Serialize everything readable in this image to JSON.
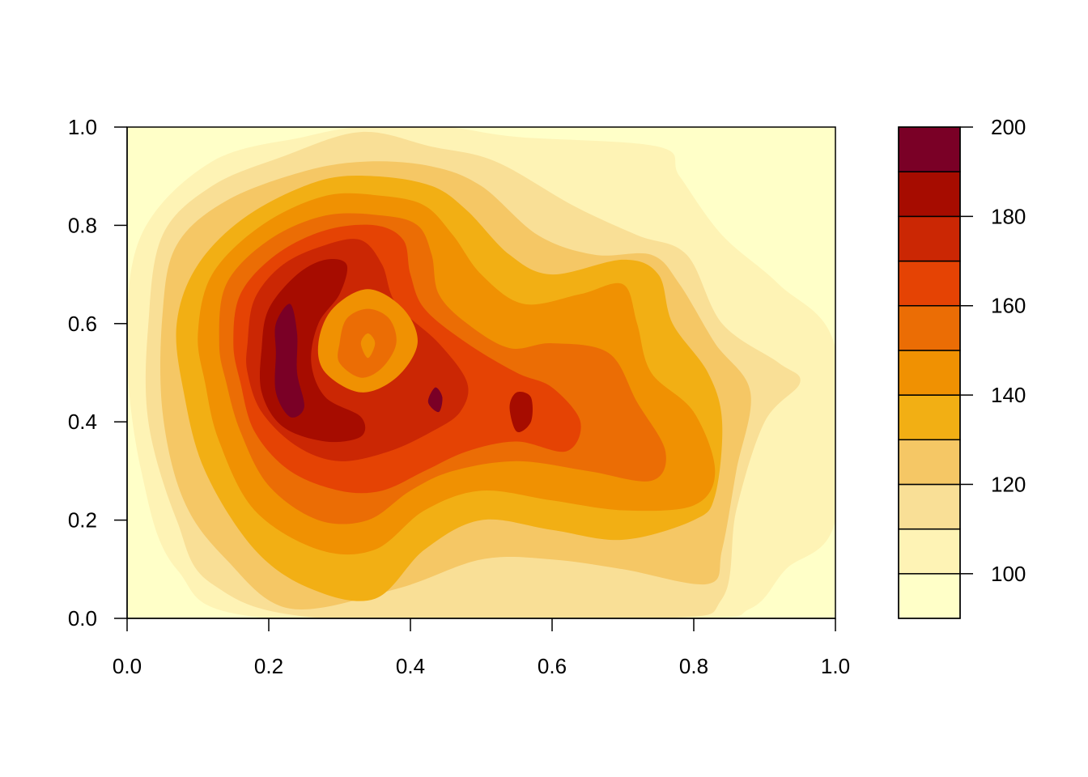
{
  "chart_data": {
    "type": "heatmap",
    "subtype": "filled-contour",
    "title": "",
    "xlabel": "",
    "ylabel": "",
    "xlim": [
      0.0,
      1.0
    ],
    "ylim": [
      0.0,
      1.0
    ],
    "x_ticks": [
      "0.0",
      "0.2",
      "0.4",
      "0.6",
      "0.8",
      "1.0"
    ],
    "y_ticks": [
      "0.0",
      "0.2",
      "0.4",
      "0.6",
      "0.8",
      "1.0"
    ],
    "grid": false,
    "legend_position": "right",
    "colorbar": {
      "range": [
        90,
        200
      ],
      "levels": [
        90,
        100,
        110,
        120,
        130,
        140,
        150,
        160,
        170,
        180,
        190,
        200
      ],
      "tick_values": [
        100,
        120,
        140,
        160,
        180,
        200
      ],
      "tick_labels": [
        "100",
        "120",
        "140",
        "160",
        "180",
        "200"
      ],
      "colors": [
        "#FFFFC8",
        "#FEF3B5",
        "#F9DF96",
        "#F5C765",
        "#F2AF14",
        "#F09102",
        "#EB6D05",
        "#E54304",
        "#CB2704",
        "#A60C00",
        "#7A0026"
      ]
    },
    "surface": {
      "description": "density-like surface",
      "peaks": [
        {
          "x": 0.22,
          "y": 0.52,
          "level_range": [
            190,
            200
          ]
        },
        {
          "x": 0.43,
          "y": 0.44,
          "level_range": [
            180,
            190
          ]
        },
        {
          "x": 0.56,
          "y": 0.42,
          "level_range": [
            170,
            180
          ]
        }
      ],
      "local_minimum": {
        "x": 0.34,
        "y": 0.55,
        "level_range": [
          140,
          150
        ]
      },
      "low_region": {
        "x": 0.95,
        "y": 0.9,
        "level_range": [
          90,
          100
        ]
      }
    }
  }
}
